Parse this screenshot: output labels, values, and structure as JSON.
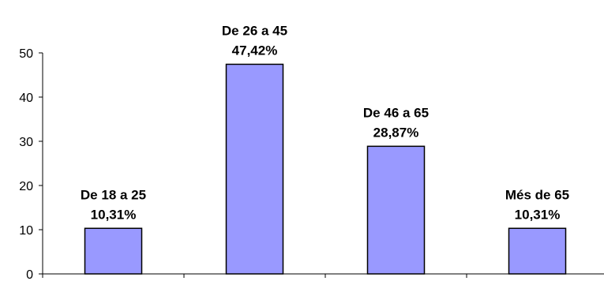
{
  "chart_data": {
    "type": "bar",
    "categories": [
      "De 18 a 25",
      "De 26 a 45",
      "De 46 a 65",
      "Més de 65"
    ],
    "values": [
      10.31,
      47.42,
      28.87,
      10.31
    ],
    "data_labels": [
      "10,31%",
      "47,42%",
      "28,87%",
      "10,31%"
    ],
    "ylim": [
      0,
      50
    ],
    "yticks": [
      0,
      10,
      20,
      30,
      40,
      50
    ],
    "title": "",
    "xlabel": "",
    "ylabel": "",
    "grid": false,
    "legend": "none",
    "colors": {
      "bar_fill": "#9999ff",
      "bar_stroke": "#000000",
      "axis": "#000000",
      "background": "#ffffff"
    }
  }
}
